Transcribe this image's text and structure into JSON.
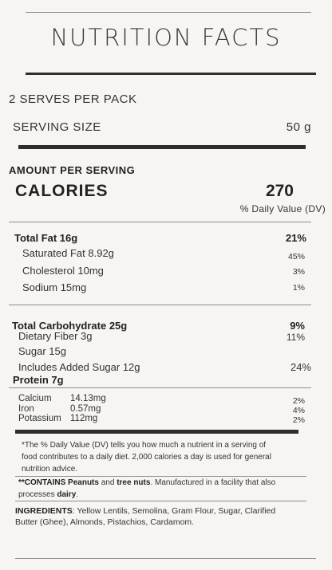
{
  "title": "NUTRITION FACTS",
  "serves_per_pack": "2 SERVES PER PACK",
  "serving_size_label": "SERVING SIZE",
  "serving_size_value": "50 g",
  "amount_per_serving": "AMOUNT PER SERVING",
  "calories_label": "CALORIES",
  "calories_value": "270",
  "daily_value_label": "% Daily Value (DV)",
  "nutrients": {
    "total_fat": {
      "label": "Total Fat 16g",
      "dv": "21%"
    },
    "saturated_fat": {
      "label": "Saturated Fat 8.92g",
      "dv": "45%"
    },
    "cholesterol": {
      "label": "Cholesterol 10mg",
      "dv": "3%"
    },
    "sodium": {
      "label": "Sodium 15mg",
      "dv": "1%"
    },
    "total_carb": {
      "label": "Total Carbohydrate 25g",
      "dv": "9%"
    },
    "fiber": {
      "label": "Dietary Fiber 3g",
      "dv": "11%"
    },
    "sugar": {
      "label": "Sugar 15g"
    },
    "added_sugar": {
      "label": "Includes Added Sugar 12g",
      "dv": "24%"
    },
    "protein": {
      "label": "Protein 7g"
    }
  },
  "minerals": [
    {
      "name": "Calcium",
      "amount": "14.13mg",
      "dv": "2%"
    },
    {
      "name": "Iron",
      "amount": "0.57mg",
      "dv": "4%"
    },
    {
      "name": "Potassium",
      "amount": "112mg",
      "dv": "2%"
    }
  ],
  "footnote": {
    "line1": "*The % Daily Value (DV) tells you how much a nutrient in a serving of",
    "line2": "food contributes to a daily diet. 2,000 calories a day is used for general",
    "line3": "nutrition advice."
  },
  "allergens": {
    "contains": "**CONTAINS",
    "peanuts": "Peanuts",
    "and": "and",
    "tree_nuts": "tree nuts",
    "rest": ". Manufactured in a facility that also",
    "line2_pre": "processes ",
    "dairy": "dairy",
    "period": "."
  },
  "ingredients": {
    "label": "INGREDIENTS",
    "line1": ": Yellow Lentils, Semolina, Gram Flour, Sugar, Clarified",
    "line2": "Butter (Ghee), Almonds, Pistachios, Cardamom."
  }
}
